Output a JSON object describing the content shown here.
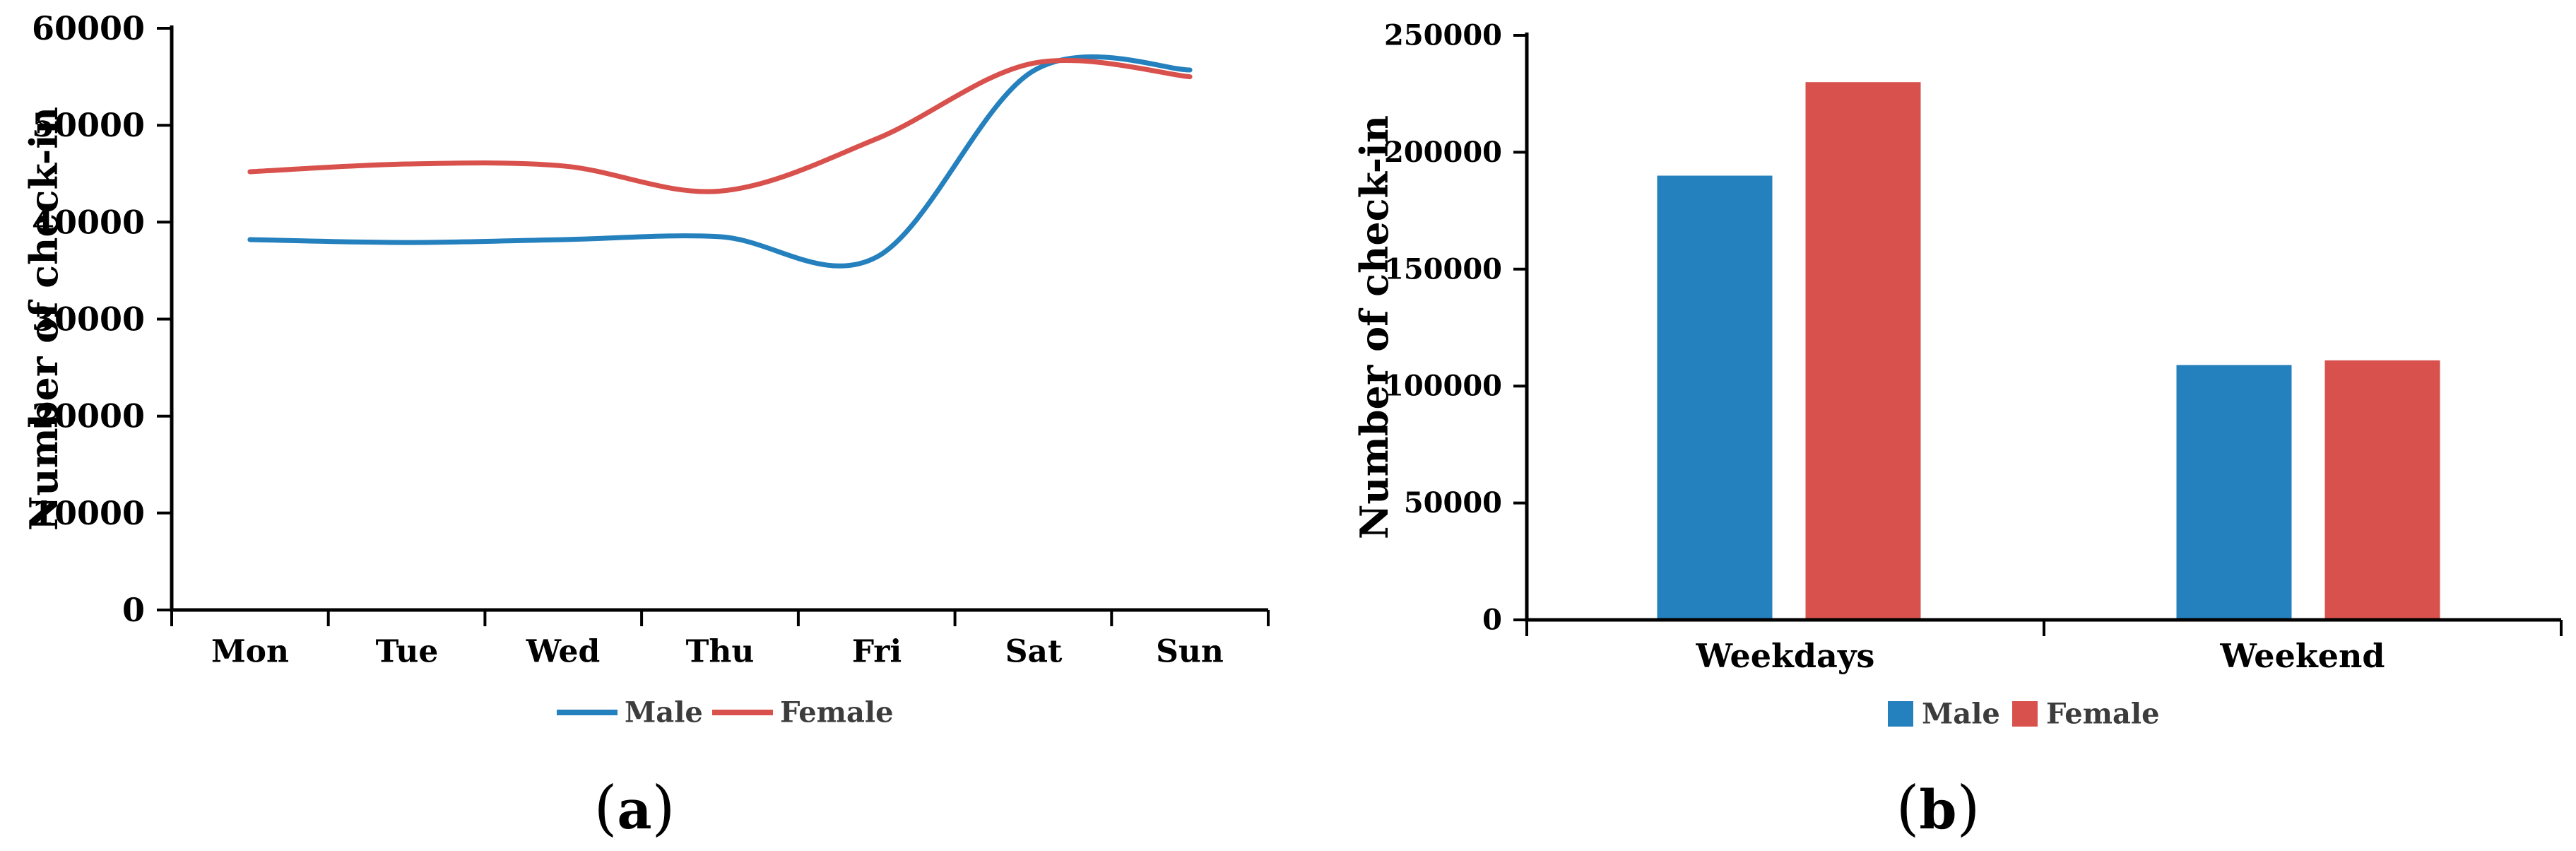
{
  "figure": {
    "caption_a": {
      "open": "(",
      "letter": "a",
      "close": ")"
    },
    "caption_b": {
      "open": "(",
      "letter": "b",
      "close": ")"
    }
  },
  "chart_data": [
    {
      "id": "a",
      "type": "line",
      "title": "",
      "xlabel": "",
      "ylabel": "Number of check-in",
      "categories": [
        "Mon",
        "Tue",
        "Wed",
        "Thu",
        "Fri",
        "Sat",
        "Sun"
      ],
      "series": [
        {
          "name": "Male",
          "color": "#2580BE",
          "values": [
            38200,
            37900,
            38200,
            38500,
            36400,
            55600,
            55700
          ]
        },
        {
          "name": "Female",
          "color": "#D8514D",
          "values": [
            45200,
            46000,
            45800,
            43200,
            48600,
            56400,
            55000
          ]
        }
      ],
      "ylim": [
        0,
        60000
      ],
      "y_ticks": [
        0,
        10000,
        20000,
        30000,
        40000,
        50000,
        60000
      ],
      "grid": "off",
      "line_style": "smooth",
      "legend_position": "bottom",
      "caption": "(a)"
    },
    {
      "id": "b",
      "type": "bar",
      "title": "",
      "xlabel": "",
      "ylabel": "Number of check-in",
      "categories": [
        "Weekdays",
        "Weekend"
      ],
      "series": [
        {
          "name": "Male",
          "color": "#2580BE",
          "values": [
            190000,
            109000
          ]
        },
        {
          "name": "Female",
          "color": "#D8514D",
          "values": [
            230000,
            111000
          ]
        }
      ],
      "ylim": [
        0,
        250000
      ],
      "y_ticks": [
        0,
        50000,
        100000,
        150000,
        200000,
        250000
      ],
      "grid": "off",
      "legend_position": "bottom",
      "caption": "(b)"
    }
  ]
}
